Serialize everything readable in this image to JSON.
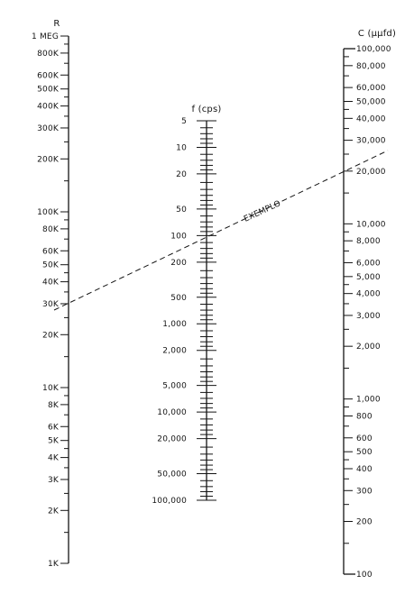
{
  "scales": {
    "r": {
      "title": "R",
      "labels": [
        "1 MEG",
        "800K",
        "600K",
        "500K",
        "400K",
        "300K",
        "200K",
        "100K",
        "80K",
        "60K",
        "50K",
        "40K",
        "30K",
        "20K",
        "10K",
        "8K",
        "6K",
        "5K",
        "4K",
        "3K",
        "2K",
        "1K"
      ]
    },
    "f": {
      "title": "f (cps)",
      "labels": [
        "5",
        "10",
        "20",
        "50",
        "100",
        "200",
        "500",
        "1,000",
        "2,000",
        "5,000",
        "10,000",
        "20,000",
        "50,000",
        "100,000"
      ]
    },
    "c": {
      "title": "C (μμfd)",
      "labels": [
        "100,000",
        "80,000",
        "60,000",
        "50,000",
        "40,000",
        "30,000",
        "20,000",
        "10,000",
        "8,000",
        "6,000",
        "5,000",
        "4,000",
        "3,000",
        "2,000",
        "1,000",
        "800",
        "600",
        "500",
        "400",
        "300",
        "200",
        "100"
      ]
    }
  },
  "example": {
    "label": "EXEMPLO"
  }
}
